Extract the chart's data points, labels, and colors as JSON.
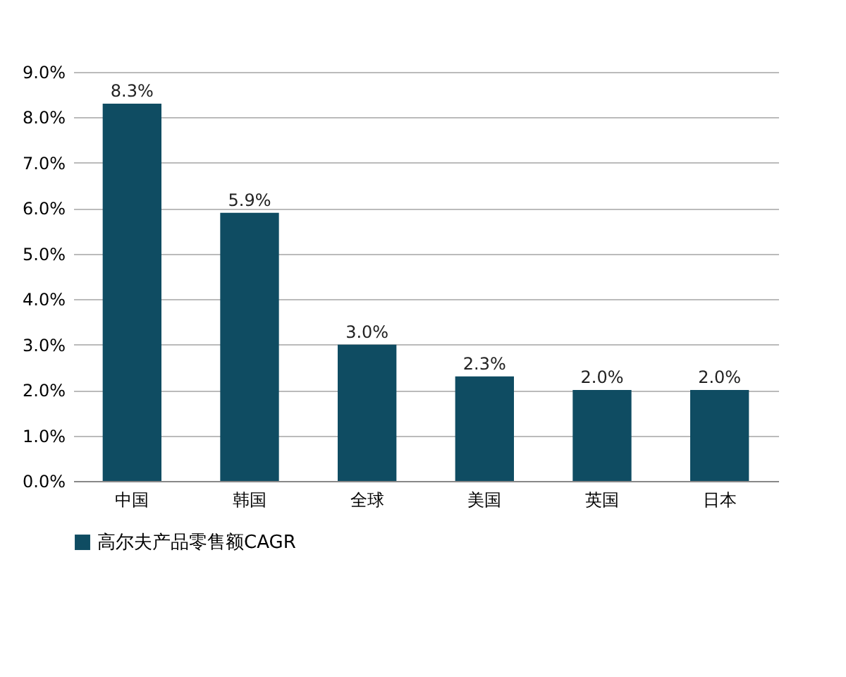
{
  "chart_data": {
    "type": "bar",
    "categories": [
      "中国",
      "韩国",
      "全球",
      "美国",
      "英国",
      "日本"
    ],
    "series": [
      {
        "name": "高尔夫产品零售额CAGR",
        "color": "#0f4c62",
        "values": [
          8.3,
          5.9,
          3.0,
          2.3,
          2.0,
          2.0
        ],
        "value_labels": [
          "8.3%",
          "5.9%",
          "3.0%",
          "2.3%",
          "2.0%",
          "2.0%"
        ]
      }
    ],
    "ylim": [
      0,
      9
    ],
    "yticks": [
      {
        "value": 0,
        "label": "0.0%"
      },
      {
        "value": 1,
        "label": "1.0%"
      },
      {
        "value": 2,
        "label": "2.0%"
      },
      {
        "value": 3,
        "label": "3.0%"
      },
      {
        "value": 4,
        "label": "4.0%"
      },
      {
        "value": 5,
        "label": "5.0%"
      },
      {
        "value": 6,
        "label": "6.0%"
      },
      {
        "value": 7,
        "label": "7.0%"
      },
      {
        "value": 8,
        "label": "8.0%"
      },
      {
        "value": 9,
        "label": "9.0%"
      }
    ],
    "grid": "y",
    "legend": "bottom"
  }
}
